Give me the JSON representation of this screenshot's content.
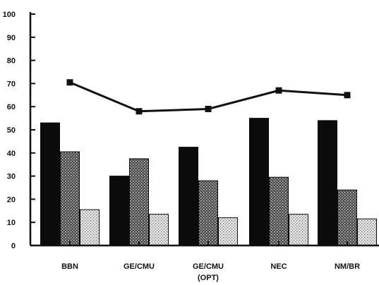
{
  "chart_data": {
    "type": "bar",
    "title": "",
    "xlabel": "",
    "ylabel": "",
    "ylim": [
      0,
      100
    ],
    "yticks": [
      0,
      10,
      20,
      30,
      40,
      50,
      60,
      70,
      80,
      90,
      100
    ],
    "categories": [
      [
        "BBN"
      ],
      [
        "GE/CMU"
      ],
      [
        "GE/CMU",
        "(OPT)"
      ],
      [
        "NEC"
      ],
      [
        "NM/BR"
      ]
    ],
    "series": [
      {
        "values": [
          53,
          30,
          42.5,
          55,
          54
        ],
        "fill": "solid-black"
      },
      {
        "values": [
          40.5,
          37.5,
          28,
          29.5,
          24
        ],
        "fill": "dark-stipple"
      },
      {
        "values": [
          15.5,
          13.5,
          12,
          13.5,
          11.5
        ],
        "fill": "light-stipple"
      }
    ],
    "line": {
      "values": [
        70.5,
        58,
        59,
        67,
        65
      ],
      "color": "#111111",
      "marker": "square"
    },
    "grid": false,
    "legend": "none"
  }
}
